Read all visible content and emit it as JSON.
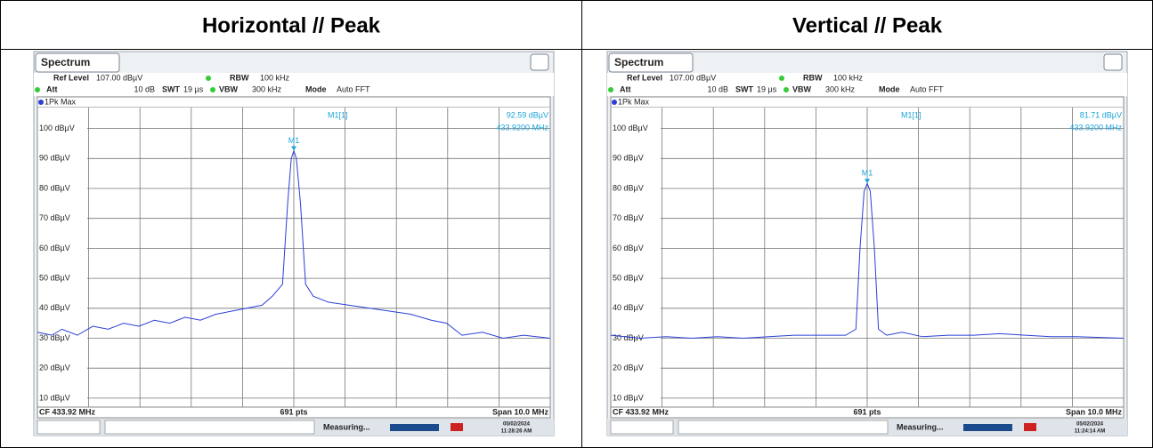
{
  "table": {
    "headers": [
      "Horizontal // Peak",
      "Vertical // Peak"
    ]
  },
  "chart_data": [
    {
      "type": "line",
      "tab": "Spectrum",
      "settings": {
        "ref_level_label": "Ref Level",
        "ref_level": "107.00 dBµV",
        "att_label": "Att",
        "att": "10 dB",
        "swt_label": "SWT",
        "swt": "19 µs",
        "rbw_label": "RBW",
        "rbw": "100 kHz",
        "vbw_label": "VBW",
        "vbw": "300 kHz",
        "mode_label": "Mode",
        "mode": "Auto FFT"
      },
      "trace_name": "1Pk Max",
      "xlim": [
        428.92,
        438.92
      ],
      "ylim": [
        7,
        107
      ],
      "yticks": [
        {
          "value": 10,
          "label": "10 dBµV"
        },
        {
          "value": 20,
          "label": "20 dBµV"
        },
        {
          "value": 30,
          "label": "30 dBµV"
        },
        {
          "value": 40,
          "label": "40 dBµV"
        },
        {
          "value": 50,
          "label": "50 dBµV"
        },
        {
          "value": 60,
          "label": "60 dBµV"
        },
        {
          "value": 70,
          "label": "70 dBµV"
        },
        {
          "value": 80,
          "label": "80 dBµV"
        },
        {
          "value": 90,
          "label": "90 dBµV"
        },
        {
          "value": 100,
          "label": "100 dBµV"
        }
      ],
      "grid": true,
      "series": [
        {
          "name": "1Pk Max",
          "color": "#2b3fd6",
          "x": [
            428.92,
            429.2,
            429.4,
            429.7,
            430.0,
            430.3,
            430.6,
            430.9,
            431.2,
            431.5,
            431.8,
            432.1,
            432.4,
            432.7,
            433.0,
            433.3,
            433.5,
            433.7,
            433.8,
            433.87,
            433.92,
            433.97,
            434.05,
            434.15,
            434.3,
            434.6,
            435.0,
            435.4,
            435.8,
            436.2,
            436.6,
            436.9,
            437.2,
            437.6,
            438.0,
            438.4,
            438.92
          ],
          "values": [
            32,
            31,
            33,
            31,
            34,
            33,
            35,
            34,
            36,
            35,
            37,
            36,
            38,
            39,
            40,
            41,
            44,
            48,
            75,
            90,
            92.59,
            90,
            75,
            48,
            44,
            42,
            41,
            40,
            39,
            38,
            36,
            35,
            31,
            32,
            30,
            31,
            30
          ]
        }
      ],
      "marker": {
        "label": "M1",
        "readout_name": "M1[1]",
        "x": 433.92,
        "y": 92.59,
        "y_label": "92.59 dBµV",
        "x_label": "433.9200 MHz"
      },
      "footer": {
        "center_freq": "CF 433.92 MHz",
        "points": "691 pts",
        "span": "Span 10.0 MHz"
      },
      "status": {
        "text": "Measuring...",
        "date": "05/02/2024",
        "time": "11:28:26 AM"
      }
    },
    {
      "type": "line",
      "tab": "Spectrum",
      "settings": {
        "ref_level_label": "Ref Level",
        "ref_level": "107.00 dBµV",
        "att_label": "Att",
        "att": "10 dB",
        "swt_label": "SWT",
        "swt": "19 µs",
        "rbw_label": "RBW",
        "rbw": "100 kHz",
        "vbw_label": "VBW",
        "vbw": "300 kHz",
        "mode_label": "Mode",
        "mode": "Auto FFT"
      },
      "trace_name": "1Pk Max",
      "xlim": [
        428.92,
        438.92
      ],
      "ylim": [
        7,
        107
      ],
      "yticks": [
        {
          "value": 10,
          "label": "10 dBµV"
        },
        {
          "value": 20,
          "label": "20 dBµV"
        },
        {
          "value": 30,
          "label": "30 dBµV"
        },
        {
          "value": 40,
          "label": "40 dBµV"
        },
        {
          "value": 50,
          "label": "50 dBµV"
        },
        {
          "value": 60,
          "label": "60 dBµV"
        },
        {
          "value": 70,
          "label": "70 dBµV"
        },
        {
          "value": 80,
          "label": "80 dBµV"
        },
        {
          "value": 90,
          "label": "90 dBµV"
        },
        {
          "value": 100,
          "label": "100 dBµV"
        }
      ],
      "grid": true,
      "series": [
        {
          "name": "1Pk Max",
          "color": "#2b3fd6",
          "x": [
            428.92,
            429.5,
            430.0,
            430.5,
            431.0,
            431.5,
            432.0,
            432.5,
            433.0,
            433.5,
            433.7,
            433.78,
            433.86,
            433.92,
            433.98,
            434.06,
            434.14,
            434.3,
            434.6,
            435.0,
            435.5,
            436.0,
            436.5,
            437.0,
            437.5,
            438.0,
            438.92
          ],
          "values": [
            31,
            30,
            30.5,
            30,
            30.5,
            30,
            30.5,
            31,
            31,
            31,
            33,
            60,
            79,
            81.71,
            79,
            60,
            33,
            31,
            32,
            30.5,
            31,
            31,
            31.5,
            31,
            30.5,
            30.5,
            30
          ]
        }
      ],
      "marker": {
        "label": "M1",
        "readout_name": "M1[1]",
        "x": 433.92,
        "y": 81.71,
        "y_label": "81.71 dBµV",
        "x_label": "433.9200 MHz"
      },
      "footer": {
        "center_freq": "CF 433.92 MHz",
        "points": "691 pts",
        "span": "Span 10.0 MHz"
      },
      "status": {
        "text": "Measuring...",
        "date": "05/02/2024",
        "time": "11:24:14 AM"
      }
    }
  ]
}
